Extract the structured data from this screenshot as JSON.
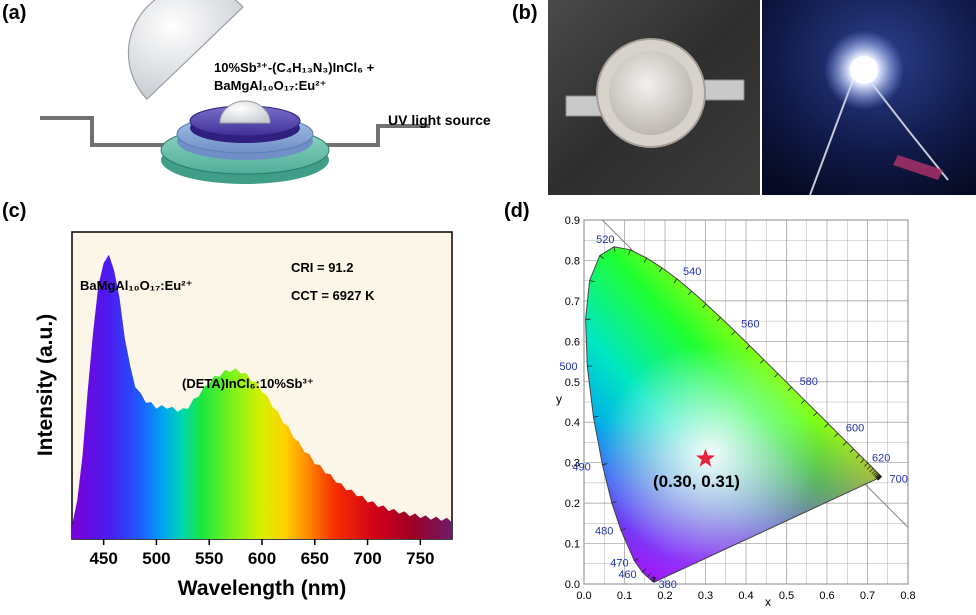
{
  "panel_a": {
    "label": "(a)",
    "material_line1": "10%Sb³⁺-(C₄H₁₃N₃)InCl₆ +",
    "material_line2": "BaMgAl₁₀O₁₇:Eu²⁺",
    "uv_label": "UV light source"
  },
  "panel_b": {
    "label": "(b)"
  },
  "panel_c": {
    "label": "(c)",
    "annotations": {
      "peak1": "BaMgAl₁₀O₁₇:Eu²⁺",
      "peak2": "(DETA)InCl₆:10%Sb³⁺",
      "cri": "CRI = 91.2",
      "cct": "CCT = 6927 K"
    }
  },
  "panel_d": {
    "label": "(d)",
    "point_label": "(0.30, 0.31)"
  },
  "chart_data": [
    {
      "type": "area",
      "xlabel": "Wavelength (nm)",
      "ylabel": "Intensity (a.u.)",
      "xlim": [
        420,
        780
      ],
      "xticks": [
        450,
        500,
        550,
        600,
        650,
        700,
        750
      ],
      "grid": false,
      "series": [
        {
          "x": [
            420,
            425,
            430,
            435,
            440,
            445,
            450,
            455,
            460,
            465,
            470,
            475,
            480,
            485,
            490,
            495,
            500,
            505,
            510,
            515,
            520,
            525,
            530,
            535,
            540,
            545,
            550,
            555,
            560,
            565,
            570,
            575,
            580,
            585,
            590,
            595,
            600,
            605,
            610,
            615,
            620,
            625,
            630,
            635,
            640,
            645,
            650,
            655,
            660,
            665,
            670,
            675,
            680,
            685,
            690,
            695,
            700,
            705,
            710,
            715,
            720,
            725,
            730,
            735,
            740,
            745,
            750,
            755,
            760,
            765,
            770,
            775,
            780
          ],
          "values": [
            0.05,
            0.12,
            0.28,
            0.48,
            0.68,
            0.82,
            0.905,
            0.92,
            0.88,
            0.78,
            0.66,
            0.56,
            0.5,
            0.47,
            0.45,
            0.44,
            0.43,
            0.43,
            0.43,
            0.425,
            0.42,
            0.42,
            0.43,
            0.45,
            0.47,
            0.49,
            0.51,
            0.525,
            0.535,
            0.545,
            0.55,
            0.55,
            0.545,
            0.535,
            0.52,
            0.505,
            0.485,
            0.46,
            0.435,
            0.41,
            0.385,
            0.36,
            0.335,
            0.31,
            0.29,
            0.27,
            0.25,
            0.235,
            0.22,
            0.205,
            0.19,
            0.175,
            0.165,
            0.155,
            0.145,
            0.135,
            0.125,
            0.117,
            0.11,
            0.103,
            0.097,
            0.092,
            0.088,
            0.084,
            0.08,
            0.077,
            0.074,
            0.071,
            0.069,
            0.067,
            0.065,
            0.063,
            0.06
          ]
        }
      ]
    },
    {
      "type": "scatter",
      "xlabel": "x",
      "ylabel": "y",
      "xlim": [
        0.0,
        0.8
      ],
      "ylim": [
        0.0,
        0.9
      ],
      "xticks": [
        "0.0",
        "0.1",
        "0.2",
        "0.3",
        "0.4",
        "0.5",
        "0.6",
        "0.7",
        "0.8"
      ],
      "yticks": [
        "0.0",
        "0.1",
        "0.2",
        "0.3",
        "0.4",
        "0.5",
        "0.6",
        "0.7",
        "0.8",
        "0.9"
      ],
      "grid": true,
      "wavelength_labels": [
        {
          "text": "380",
          "x": 0.1741,
          "y": 0.005
        },
        {
          "text": "460",
          "x": 0.144,
          "y": 0.0297
        },
        {
          "text": "470",
          "x": 0.1241,
          "y": 0.0578
        },
        {
          "text": "480",
          "x": 0.0913,
          "y": 0.1327
        },
        {
          "text": "490",
          "x": 0.0454,
          "y": 0.295
        },
        {
          "text": "500",
          "x": 0.0082,
          "y": 0.5384
        },
        {
          "text": "520",
          "x": 0.0743,
          "y": 0.8338
        },
        {
          "text": "540",
          "x": 0.2296,
          "y": 0.7543
        },
        {
          "text": "560",
          "x": 0.3731,
          "y": 0.6245
        },
        {
          "text": "580",
          "x": 0.5125,
          "y": 0.4866
        },
        {
          "text": "600",
          "x": 0.627,
          "y": 0.3725
        },
        {
          "text": "620",
          "x": 0.6915,
          "y": 0.3083
        },
        {
          "text": "700",
          "x": 0.7347,
          "y": 0.2653
        }
      ],
      "locus": {
        "x": [
          0.1741,
          0.1738,
          0.1736,
          0.1733,
          0.1726,
          0.1714,
          0.1689,
          0.1644,
          0.1566,
          0.144,
          0.1241,
          0.0913,
          0.0687,
          0.0454,
          0.0235,
          0.0082,
          0.0039,
          0.0139,
          0.0389,
          0.0743,
          0.1142,
          0.1547,
          0.1929,
          0.2296,
          0.2658,
          0.3016,
          0.3373,
          0.3731,
          0.4087,
          0.4441,
          0.4788,
          0.5125,
          0.5448,
          0.5752,
          0.6029,
          0.627,
          0.6482,
          0.6658,
          0.6801,
          0.6915,
          0.7006,
          0.7079,
          0.714,
          0.719,
          0.723,
          0.726,
          0.7283,
          0.73,
          0.7311,
          0.732,
          0.7327,
          0.7334,
          0.734,
          0.7344,
          0.7346,
          0.7347
        ],
        "y": [
          0.005,
          0.0049,
          0.0049,
          0.0048,
          0.0048,
          0.0051,
          0.0069,
          0.0109,
          0.0177,
          0.0297,
          0.0578,
          0.1327,
          0.2007,
          0.295,
          0.4127,
          0.5384,
          0.6548,
          0.7502,
          0.812,
          0.8338,
          0.8262,
          0.8059,
          0.7816,
          0.7543,
          0.7243,
          0.6923,
          0.6589,
          0.6245,
          0.5896,
          0.5547,
          0.5202,
          0.4866,
          0.4544,
          0.4242,
          0.3965,
          0.3725,
          0.3514,
          0.334,
          0.3197,
          0.3083,
          0.2993,
          0.292,
          0.2859,
          0.2809,
          0.277,
          0.274,
          0.2717,
          0.27,
          0.2689,
          0.268,
          0.2673,
          0.2666,
          0.266,
          0.2656,
          0.2654,
          0.2653
        ]
      },
      "series": [
        {
          "x": [
            0.3
          ],
          "y": [
            0.31
          ],
          "marker": "star",
          "color": "#e8203a"
        }
      ]
    }
  ]
}
